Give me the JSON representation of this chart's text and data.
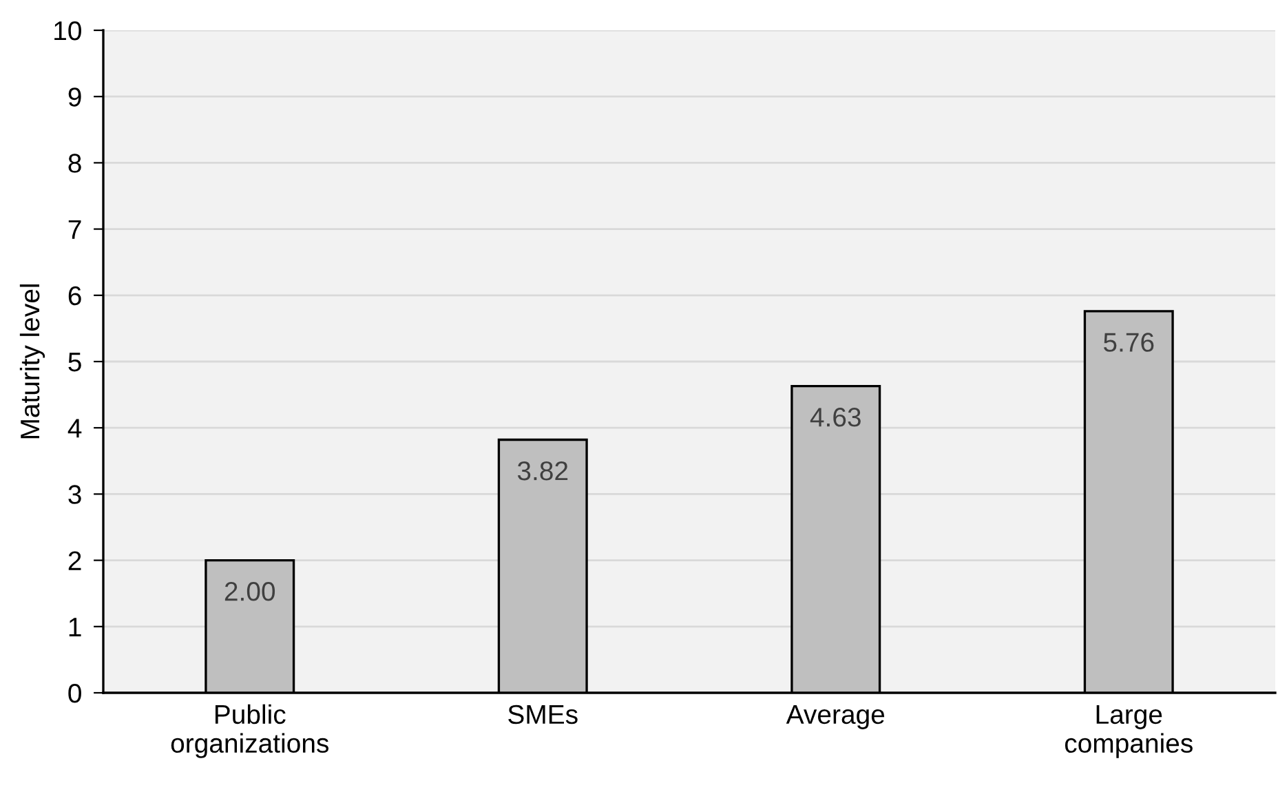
{
  "chart_data": {
    "type": "bar",
    "ylabel": "Maturity level",
    "categories": [
      "Public\norganizations",
      "SMEs",
      "Average",
      "Large\ncompanies"
    ],
    "values": [
      2.0,
      3.82,
      4.63,
      5.76
    ],
    "value_labels": [
      "2.00",
      "3.82",
      "4.63",
      "5.76"
    ],
    "color": "#bfbfbf",
    "ylim": [
      0,
      10
    ],
    "yticks": [
      0,
      1,
      2,
      3,
      4,
      5,
      6,
      7,
      8,
      9,
      10
    ],
    "grid": "y",
    "legend": false
  }
}
